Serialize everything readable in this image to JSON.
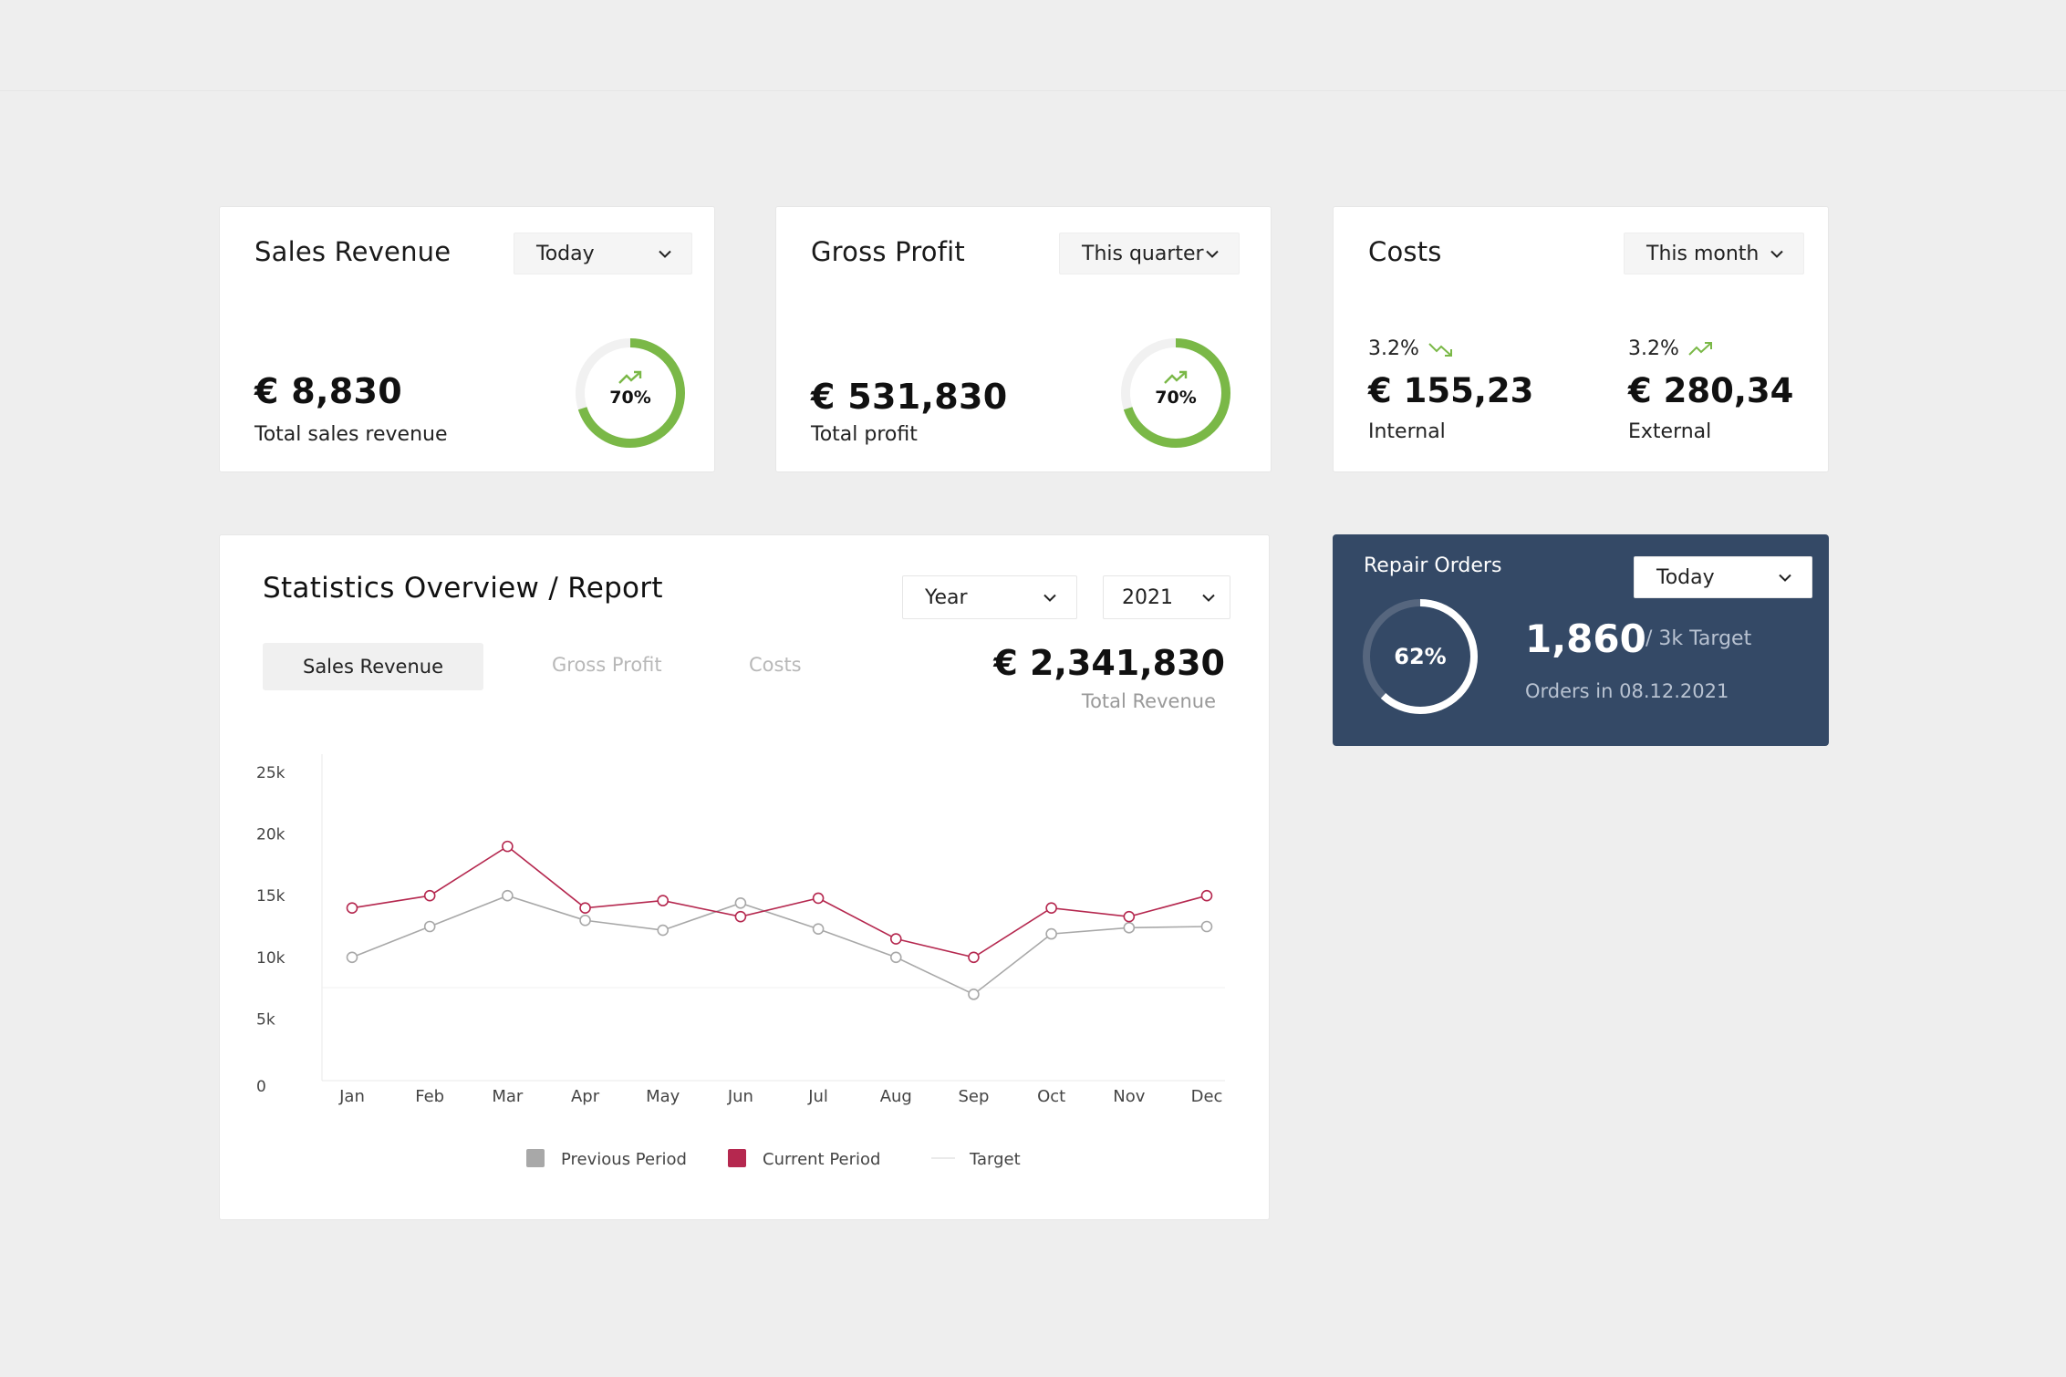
{
  "cards": {
    "sales": {
      "title": "Sales Revenue",
      "period": "Today",
      "value": "€ 8,830",
      "label": "Total sales revenue",
      "progress_pct": "70%",
      "progress": 0.7
    },
    "profit": {
      "title": "Gross Profit",
      "period": "This quarter",
      "value": "€ 531,830",
      "label": "Total profit",
      "progress_pct": "70%",
      "progress": 0.7
    },
    "costs": {
      "title": "Costs",
      "period": "This month",
      "internal_trend": "3.2%",
      "internal_value": "€ 155,23",
      "internal_label": "Internal",
      "external_trend": "3.2%",
      "external_value": "€ 280,34",
      "external_label": "External"
    }
  },
  "repair_orders": {
    "title": "Repair Orders",
    "period": "Today",
    "progress_pct": "62%",
    "progress": 0.62,
    "value": "1,860",
    "target": "/ 3k Target",
    "subtitle": "Orders in 08.12.2021"
  },
  "stats": {
    "title": "Statistics Overview / Report",
    "range_select": "Year",
    "year_select": "2021",
    "tabs": [
      "Sales Revenue",
      "Gross Profit",
      "Costs"
    ],
    "total_value": "€ 2,341,830",
    "total_label": "Total Revenue"
  },
  "colors": {
    "accent_green": "#7ab847",
    "current_period": "#b5284f",
    "previous_period": "#a8a8a8",
    "repair_bg": "#344966"
  },
  "chart_data": {
    "type": "line",
    "categories": [
      "Jan",
      "Feb",
      "Mar",
      "Apr",
      "May",
      "Jun",
      "Jul",
      "Aug",
      "Sep",
      "Oct",
      "Nov",
      "Dec"
    ],
    "y_ticks": [
      "0",
      "5k",
      "10k",
      "15k",
      "20k",
      "25k"
    ],
    "ylim": [
      0,
      25000
    ],
    "series": [
      {
        "name": "Previous Period",
        "values": [
          10000,
          12500,
          15000,
          13000,
          12200,
          14400,
          12300,
          10000,
          7000,
          11900,
          12400,
          12500
        ]
      },
      {
        "name": "Current Period",
        "values": [
          14000,
          15000,
          19000,
          14000,
          14600,
          13300,
          14800,
          11500,
          10000,
          14000,
          13300,
          15000
        ]
      }
    ],
    "legend": [
      "Previous Period",
      "Current Period",
      "Target"
    ],
    "legend_position": "bottom"
  }
}
